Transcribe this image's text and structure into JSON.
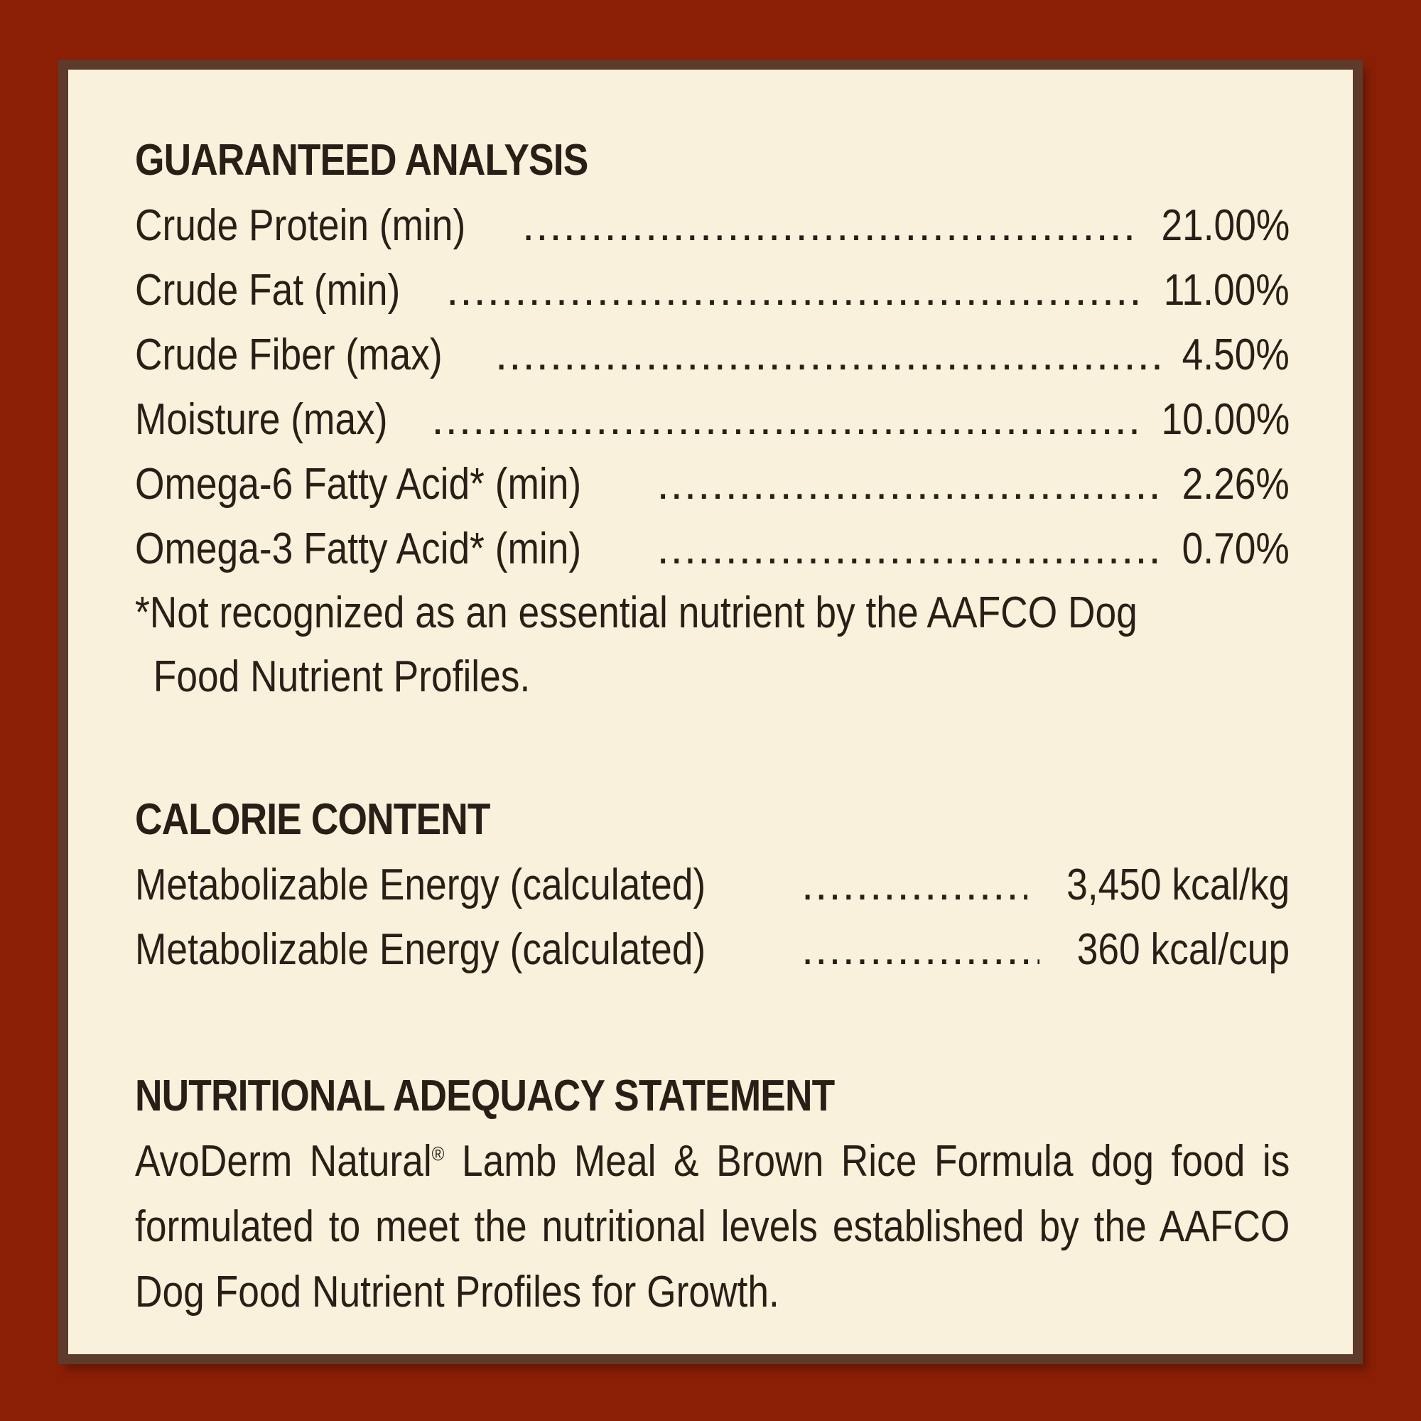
{
  "colors": {
    "background": "#8b1f06",
    "panel": "#f9f1db",
    "border": "#5e3a2b",
    "text": "#2a1f17"
  },
  "guaranteed_analysis": {
    "heading": "GUARANTEED ANALYSIS",
    "rows": [
      {
        "label": "Crude Protein (min)",
        "value": "21.00%"
      },
      {
        "label": "Crude Fat (min)",
        "value": "11.00%"
      },
      {
        "label": "Crude Fiber (max)",
        "value": "4.50%"
      },
      {
        "label": "Moisture (max)",
        "value": "10.00%"
      },
      {
        "label": "Omega-6 Fatty Acid* (min)",
        "value": "2.26%"
      },
      {
        "label": "Omega-3 Fatty Acid* (min)",
        "value": "0.70%"
      }
    ],
    "footnote_line1": "*Not recognized as an essential nutrient by the AAFCO Dog",
    "footnote_line2": "Food Nutrient Profiles."
  },
  "calorie_content": {
    "heading": "CALORIE CONTENT",
    "rows": [
      {
        "label": "Metabolizable Energy (calculated)",
        "value": "3,450 kcal/kg"
      },
      {
        "label": "Metabolizable Energy (calculated)",
        "value": "360 kcal/cup"
      }
    ]
  },
  "nutritional_adequacy": {
    "heading": "NUTRITIONAL ADEQUACY STATEMENT",
    "brand": "AvoDerm Natural",
    "registered_mark": "®",
    "text": " Lamb Meal & Brown Rice Formula dog food is formulated to meet the nutritional levels established by the AAFCO Dog Food Nutrient Profiles for Growth."
  }
}
